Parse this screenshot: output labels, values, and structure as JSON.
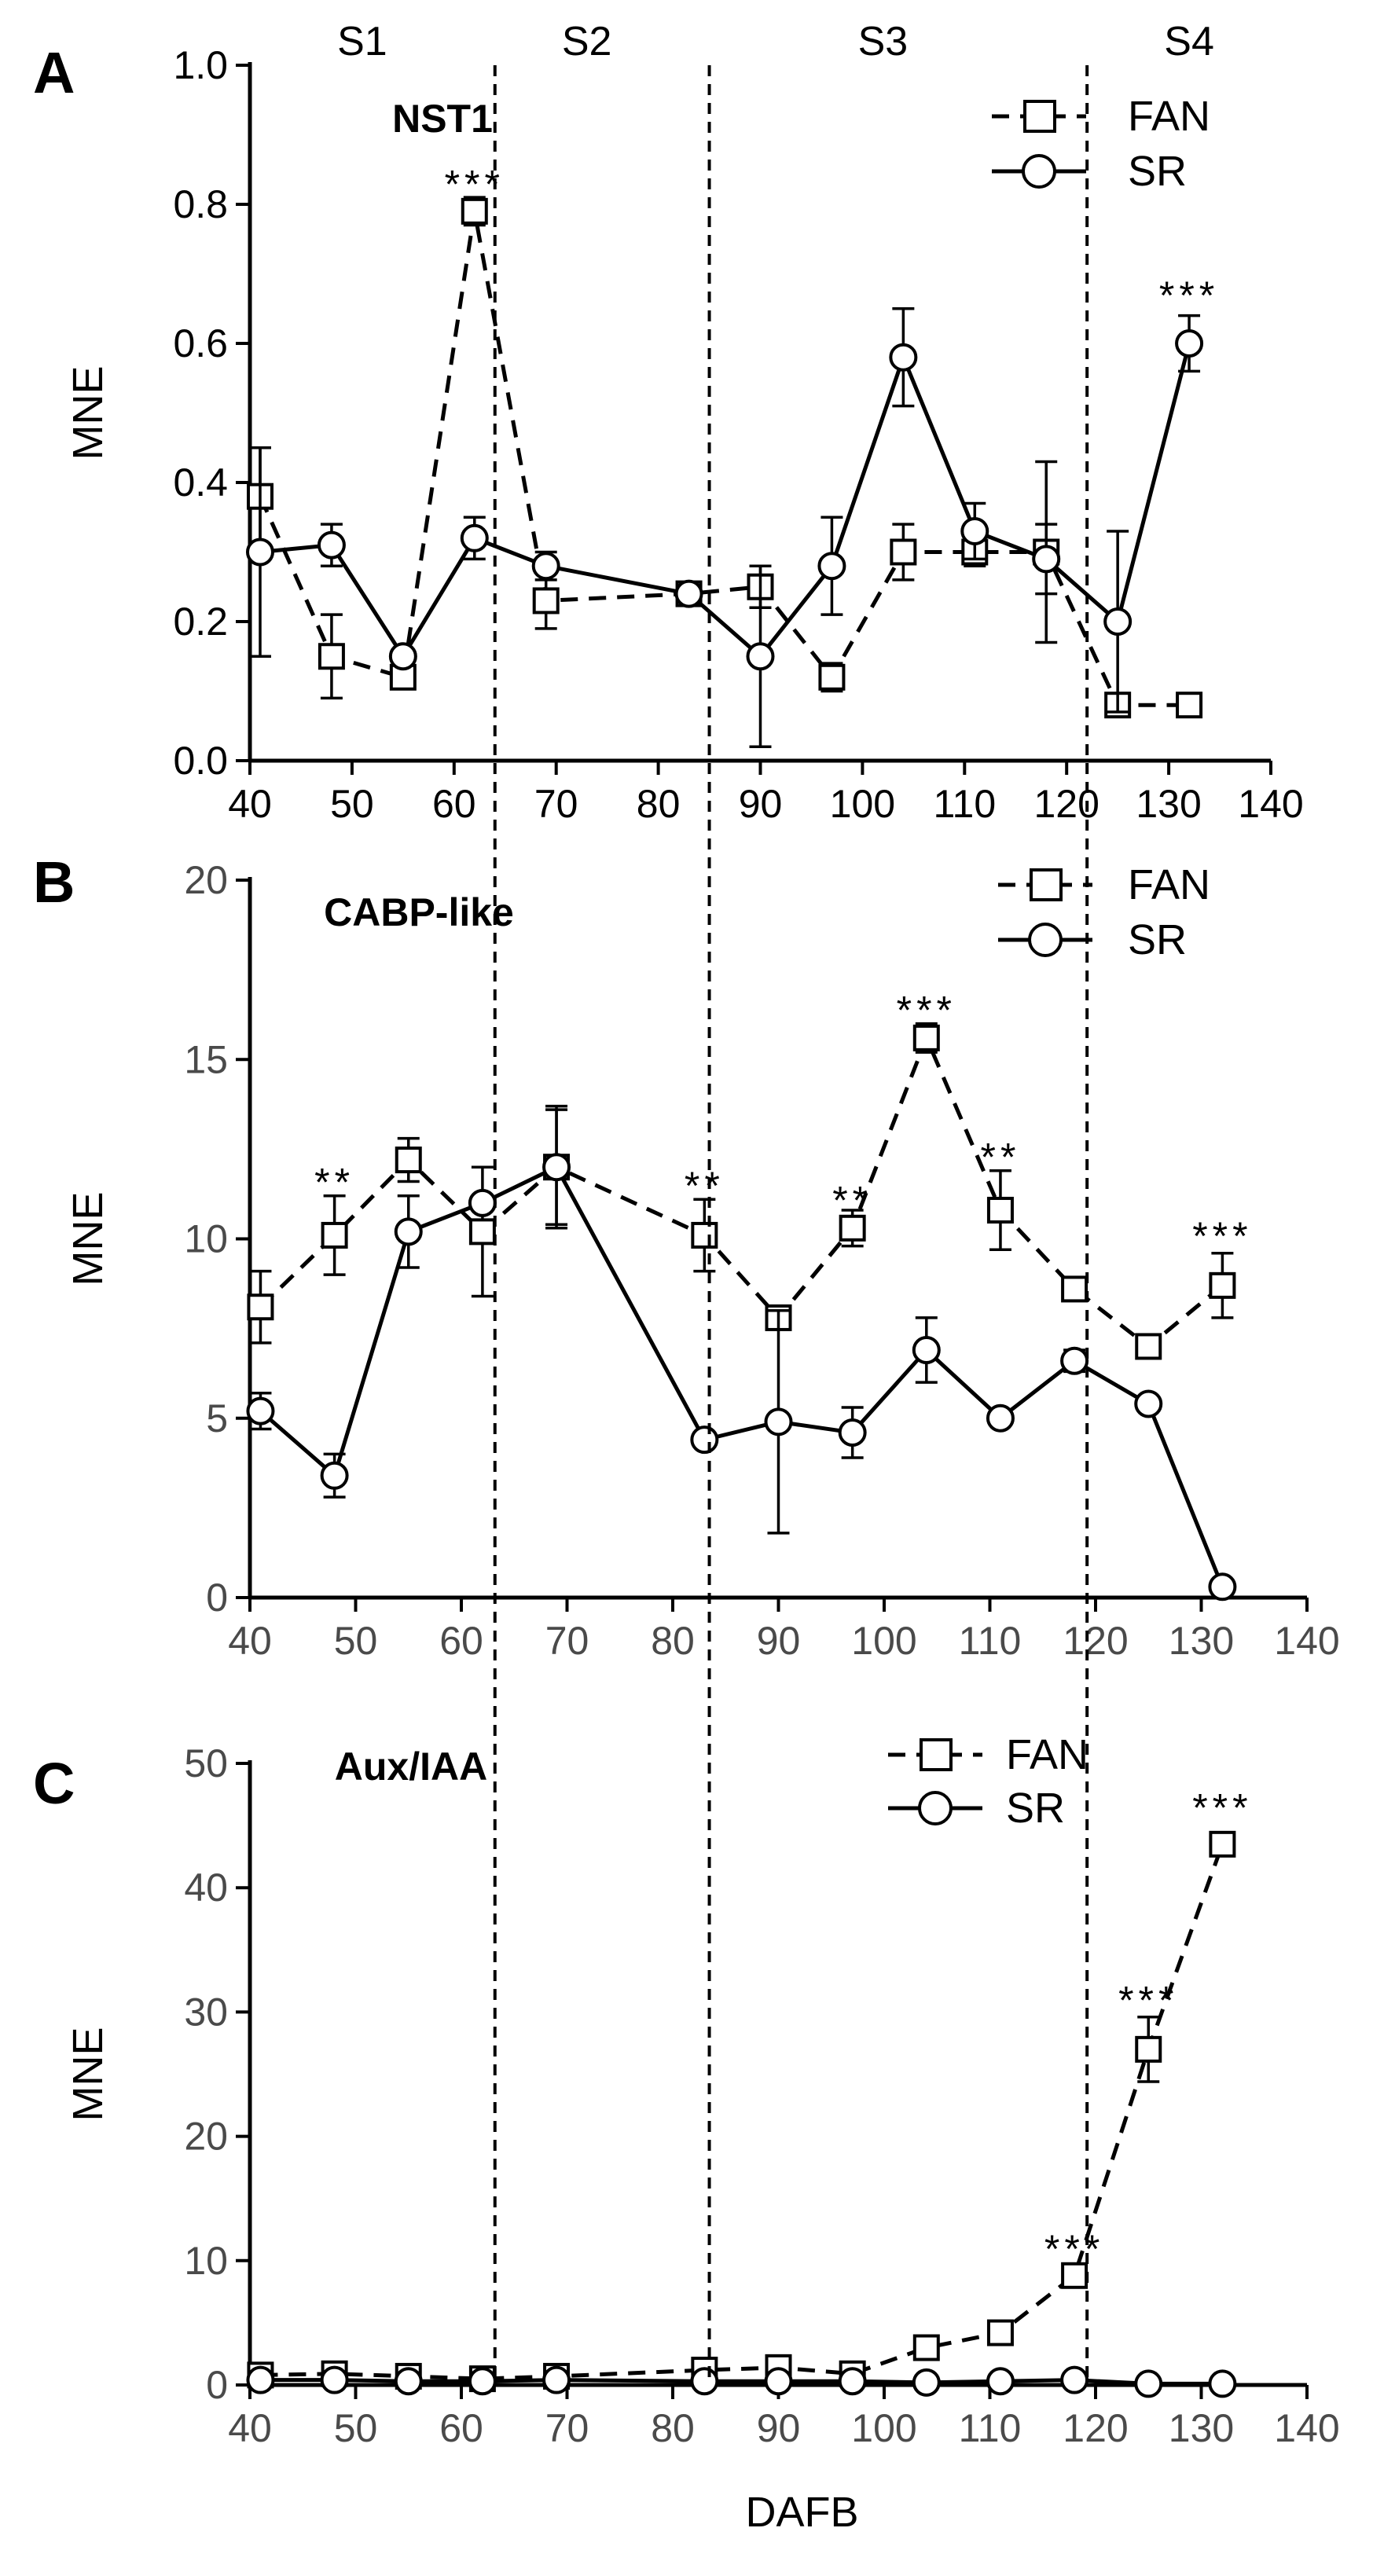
{
  "chart_data": [
    {
      "type": "line",
      "panel_label": "A",
      "title": "NST1",
      "ylabel": "MNE",
      "xlabel": "",
      "xlim": [
        40,
        140
      ],
      "ylim": [
        0,
        1.0
      ],
      "x_ticks": [
        "40",
        "50",
        "60",
        "70",
        "80",
        "90",
        "100",
        "110",
        "120",
        "130",
        "140"
      ],
      "y_ticks": [
        "0.0",
        "0.2",
        "0.4",
        "0.6",
        "0.8",
        "1.0"
      ],
      "legend": [
        "FAN",
        "SR"
      ],
      "legend_position": "top-right",
      "series": [
        {
          "name": "FAN",
          "style": "dashed",
          "marker": "square",
          "x": [
            41,
            48,
            55,
            62,
            69,
            83,
            90,
            97,
            104,
            111,
            118,
            125,
            132
          ],
          "y": [
            0.38,
            0.15,
            0.12,
            0.79,
            0.23,
            0.24,
            0.25,
            0.12,
            0.3,
            0.3,
            0.3,
            0.08,
            0.08
          ],
          "err": [
            0.07,
            0.06,
            0.01,
            0.02,
            0.04,
            0.01,
            0.03,
            0.02,
            0.04,
            0.02,
            0.13,
            0.0,
            0.0
          ]
        },
        {
          "name": "SR",
          "style": "solid",
          "marker": "circle",
          "x": [
            41,
            48,
            55,
            62,
            69,
            83,
            90,
            97,
            104,
            111,
            118,
            125,
            132
          ],
          "y": [
            0.3,
            0.31,
            0.15,
            0.32,
            0.28,
            0.24,
            0.15,
            0.28,
            0.58,
            0.33,
            0.29,
            0.2,
            0.6
          ],
          "err": [
            0.15,
            0.03,
            0.01,
            0.03,
            0.02,
            0.01,
            0.13,
            0.07,
            0.07,
            0.04,
            0.05,
            0.13,
            0.04
          ]
        }
      ],
      "significance": [
        {
          "x": 62,
          "y": 0.83,
          "text": "***"
        },
        {
          "x": 132,
          "y": 0.67,
          "text": "***"
        }
      ]
    },
    {
      "type": "line",
      "panel_label": "B",
      "title": "CABP-like",
      "ylabel": "MNE",
      "xlabel": "",
      "xlim": [
        40,
        140
      ],
      "ylim": [
        0,
        20
      ],
      "x_ticks": [
        "40",
        "50",
        "60",
        "70",
        "80",
        "90",
        "100",
        "110",
        "120",
        "130",
        "140"
      ],
      "y_ticks": [
        "0",
        "5",
        "10",
        "15",
        "20"
      ],
      "legend": [
        "FAN",
        "SR"
      ],
      "legend_position": "top-right",
      "series": [
        {
          "name": "FAN",
          "style": "dashed",
          "marker": "square",
          "x": [
            41,
            48,
            55,
            62,
            69,
            83,
            90,
            97,
            104,
            111,
            118,
            125,
            132
          ],
          "y": [
            8.1,
            10.1,
            12.2,
            10.2,
            12.0,
            10.1,
            7.8,
            10.3,
            15.6,
            10.8,
            8.6,
            7.0,
            8.7
          ],
          "err": [
            1.0,
            1.1,
            0.6,
            1.8,
            1.7,
            1.0,
            0.0,
            0.5,
            0.4,
            1.1,
            0.0,
            0.2,
            0.9
          ]
        },
        {
          "name": "SR",
          "style": "solid",
          "marker": "circle",
          "x": [
            41,
            48,
            55,
            62,
            69,
            83,
            90,
            97,
            104,
            111,
            118,
            125,
            132
          ],
          "y": [
            5.2,
            3.4,
            10.2,
            11.0,
            12.0,
            4.4,
            4.9,
            4.6,
            6.9,
            5.0,
            6.6,
            5.4,
            0.3
          ],
          "err": [
            0.5,
            0.6,
            1.0,
            0.0,
            1.6,
            0.0,
            3.1,
            0.7,
            0.9,
            0.0,
            0.3,
            0.0,
            0.0
          ]
        }
      ],
      "significance": [
        {
          "x": 48,
          "y": 11.6,
          "text": "**"
        },
        {
          "x": 83,
          "y": 11.5,
          "text": "**"
        },
        {
          "x": 97,
          "y": 11.1,
          "text": "**"
        },
        {
          "x": 104,
          "y": 16.4,
          "text": "***"
        },
        {
          "x": 111,
          "y": 12.3,
          "text": "**"
        },
        {
          "x": 132,
          "y": 10.1,
          "text": "***"
        }
      ]
    },
    {
      "type": "line",
      "panel_label": "C",
      "title": "Aux/IAA",
      "ylabel": "MNE",
      "xlabel": "DAFB",
      "xlim": [
        40,
        140
      ],
      "ylim": [
        0,
        50
      ],
      "x_ticks": [
        "40",
        "50",
        "60",
        "70",
        "80",
        "90",
        "100",
        "110",
        "120",
        "130",
        "140"
      ],
      "y_ticks": [
        "0",
        "10",
        "20",
        "30",
        "40",
        "50"
      ],
      "legend": [
        "FAN",
        "SR"
      ],
      "legend_position": "top-right",
      "series": [
        {
          "name": "FAN",
          "style": "dashed",
          "marker": "square",
          "x": [
            41,
            48,
            55,
            62,
            69,
            83,
            90,
            97,
            104,
            111,
            118,
            125,
            132
          ],
          "y": [
            0.8,
            0.9,
            0.7,
            0.5,
            0.7,
            1.2,
            1.4,
            0.9,
            3.0,
            4.2,
            8.8,
            27.0,
            43.5
          ],
          "err": [
            0.2,
            0.2,
            0.2,
            0.2,
            0.2,
            0.3,
            0.3,
            0.2,
            0.3,
            0.3,
            0.9,
            2.6,
            0.5
          ]
        },
        {
          "name": "SR",
          "style": "solid",
          "marker": "circle",
          "x": [
            41,
            48,
            55,
            62,
            69,
            83,
            90,
            97,
            104,
            111,
            118,
            125,
            132
          ],
          "y": [
            0.4,
            0.4,
            0.3,
            0.3,
            0.4,
            0.3,
            0.3,
            0.3,
            0.2,
            0.3,
            0.4,
            0.1,
            0.1
          ],
          "err": [
            0.1,
            0.1,
            0.1,
            0.1,
            0.1,
            0.1,
            0.1,
            0.1,
            0.1,
            0.1,
            0.1,
            0.0,
            0.0
          ]
        }
      ],
      "significance": [
        {
          "x": 118,
          "y": 11.0,
          "text": "***"
        },
        {
          "x": 125,
          "y": 31.0,
          "text": "***"
        },
        {
          "x": 132,
          "y": 46.5,
          "text": "***"
        }
      ]
    }
  ],
  "stages": {
    "labels": [
      "S1",
      "S2",
      "S3",
      "S4"
    ],
    "label_centers_dafb": [
      51,
      73,
      102,
      132
    ],
    "boundaries_dafb": [
      64,
      85,
      122
    ]
  }
}
